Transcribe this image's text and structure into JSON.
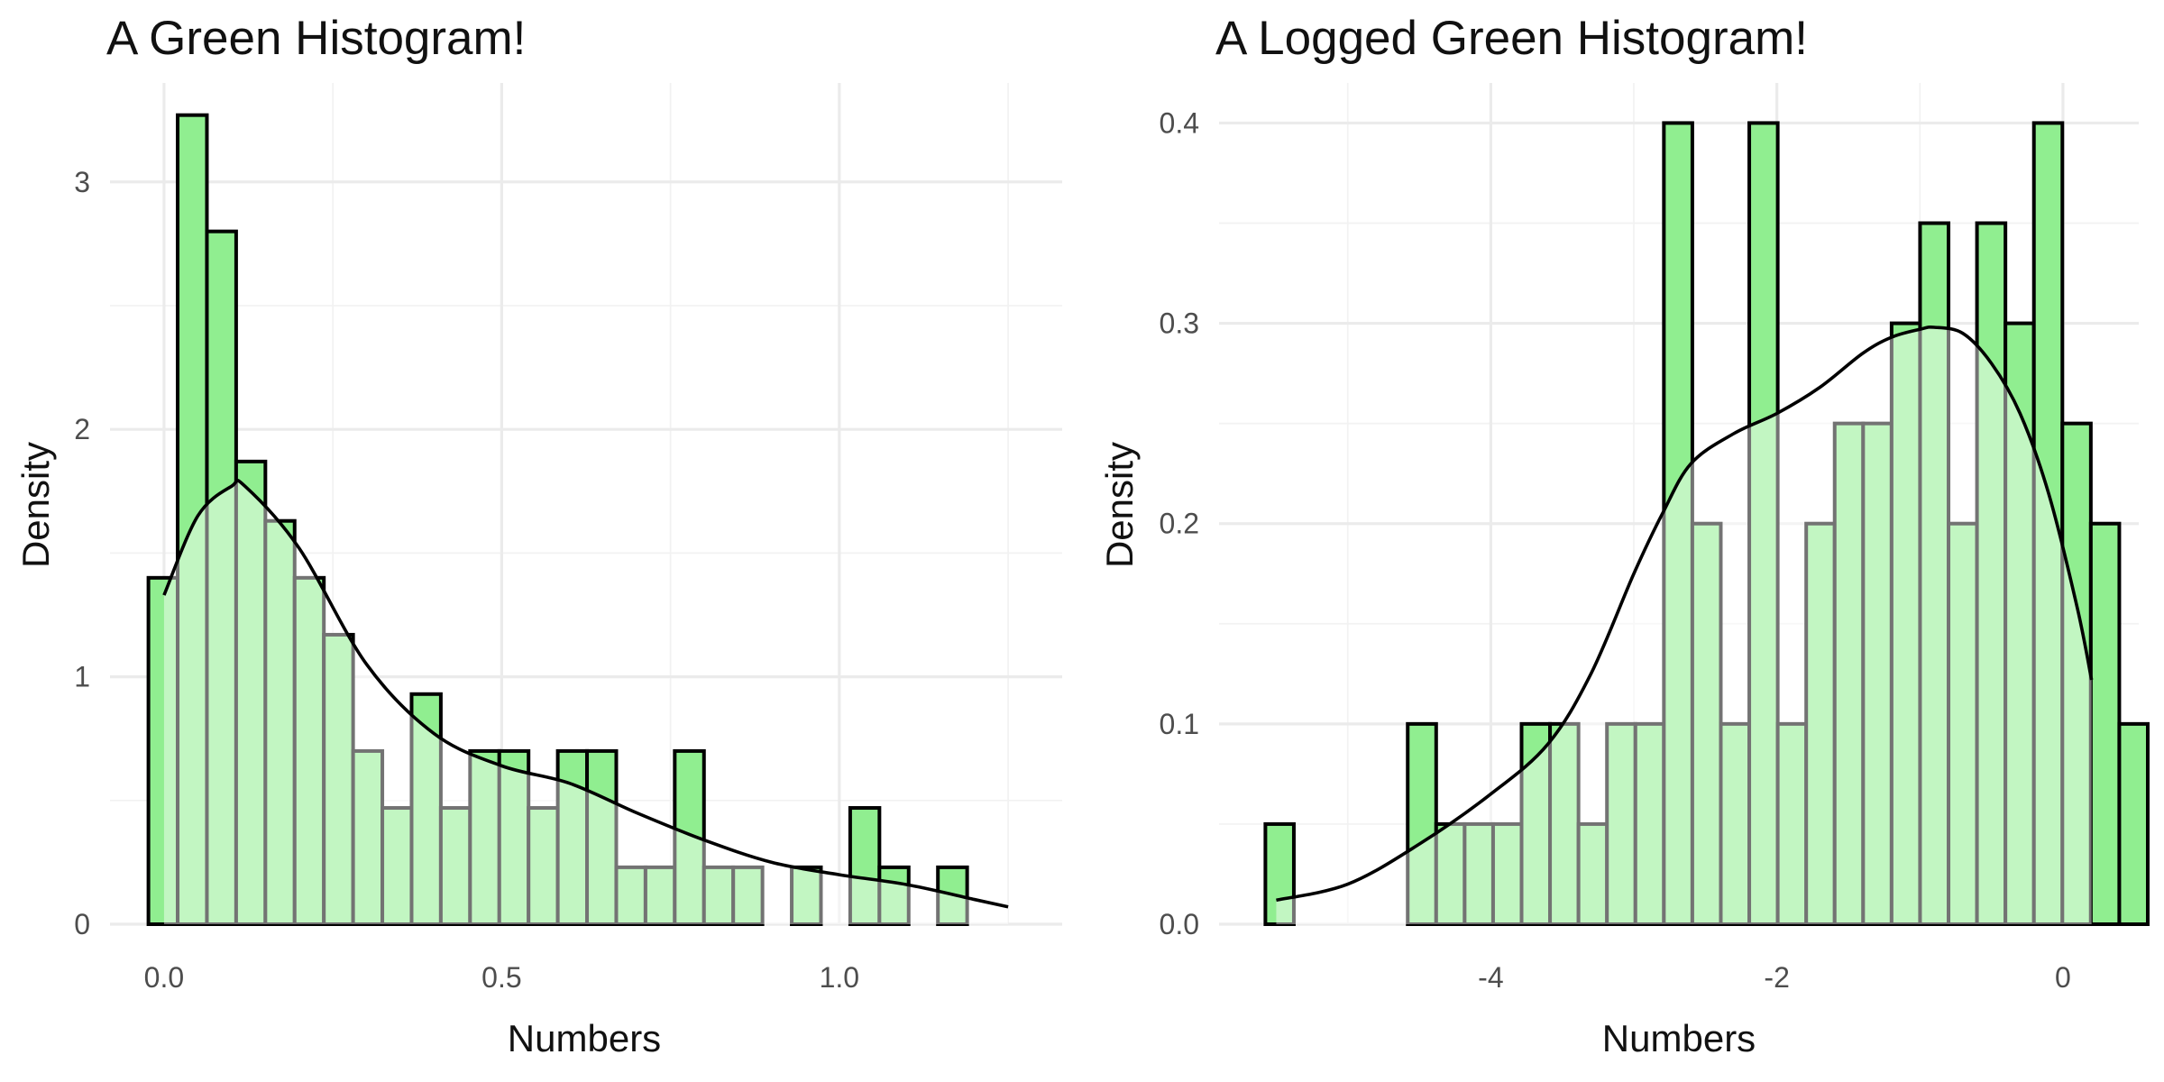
{
  "chart_data": [
    {
      "type": "bar",
      "title": "A Green Histogram!",
      "xlabel": "Numbers",
      "ylabel": "Density",
      "xlim": [
        -0.08,
        1.33
      ],
      "ylim": [
        0,
        3.4
      ],
      "x_ticks": [
        "0.0",
        "0.5",
        "1.0"
      ],
      "x_tick_values": [
        0,
        0.5,
        1.0
      ],
      "y_ticks": [
        "0",
        "1",
        "2",
        "3"
      ],
      "y_tick_values": [
        0,
        1,
        2,
        3
      ],
      "grid": true,
      "bin_width": 0.0433,
      "bin_start": -0.0231,
      "values": [
        1.4,
        3.27,
        2.8,
        1.87,
        1.63,
        1.4,
        1.17,
        0.7,
        0.47,
        0.93,
        0.47,
        0.7,
        0.7,
        0.47,
        0.7,
        0.7,
        0.23,
        0.23,
        0.7,
        0.23,
        0.23,
        0.0,
        0.23,
        0.0,
        0.47,
        0.23,
        0.0,
        0.23
      ],
      "density_curve": {
        "x": [
          0.0,
          0.05,
          0.1,
          0.12,
          0.2,
          0.3,
          0.4,
          0.5,
          0.6,
          0.7,
          0.8,
          0.9,
          1.0,
          1.1,
          1.2,
          1.25
        ],
        "y": [
          1.33,
          1.65,
          1.77,
          1.77,
          1.52,
          1.05,
          0.77,
          0.64,
          0.57,
          0.45,
          0.34,
          0.25,
          0.2,
          0.16,
          0.1,
          0.07
        ]
      },
      "colors": {
        "bar_fill": "#90ee90",
        "bar_stroke": "#000000",
        "density_fill": "#c8f5c8",
        "line": "#000000"
      }
    },
    {
      "type": "bar",
      "title": "A Logged Green Histogram!",
      "xlabel": "Numbers",
      "ylabel": "Density",
      "xlim": [
        -5.9,
        0.53
      ],
      "ylim": [
        0,
        0.42
      ],
      "x_ticks": [
        "-4",
        "-2",
        "0"
      ],
      "x_tick_values": [
        -4,
        -2,
        0
      ],
      "y_ticks": [
        "0.0",
        "0.1",
        "0.2",
        "0.3",
        "0.4"
      ],
      "y_tick_values": [
        0,
        0.1,
        0.2,
        0.3,
        0.4
      ],
      "grid": true,
      "bin_width": 0.199,
      "bin_start": -5.576,
      "values": [
        0.05,
        0.0,
        0.0,
        0.0,
        0.0,
        0.1,
        0.05,
        0.05,
        0.05,
        0.1,
        0.1,
        0.05,
        0.1,
        0.1,
        0.4,
        0.2,
        0.1,
        0.4,
        0.1,
        0.2,
        0.25,
        0.25,
        0.3,
        0.35,
        0.2,
        0.35,
        0.3,
        0.4,
        0.25,
        0.2,
        0.1
      ],
      "density_curve": {
        "x": [
          -5.5,
          -5.0,
          -4.5,
          -4.0,
          -3.6,
          -3.3,
          -3.0,
          -2.8,
          -2.6,
          -2.3,
          -2.0,
          -1.7,
          -1.4,
          -1.2,
          -1.0,
          -0.9,
          -0.7,
          -0.5,
          -0.3,
          -0.1,
          0.1,
          0.2
        ],
        "y": [
          0.012,
          0.02,
          0.04,
          0.065,
          0.09,
          0.125,
          0.175,
          0.205,
          0.23,
          0.245,
          0.255,
          0.268,
          0.285,
          0.293,
          0.297,
          0.298,
          0.295,
          0.28,
          0.255,
          0.215,
          0.158,
          0.122
        ]
      },
      "colors": {
        "bar_fill": "#90ee90",
        "bar_stroke": "#000000",
        "density_fill": "#c8f5c8",
        "line": "#000000"
      }
    }
  ]
}
